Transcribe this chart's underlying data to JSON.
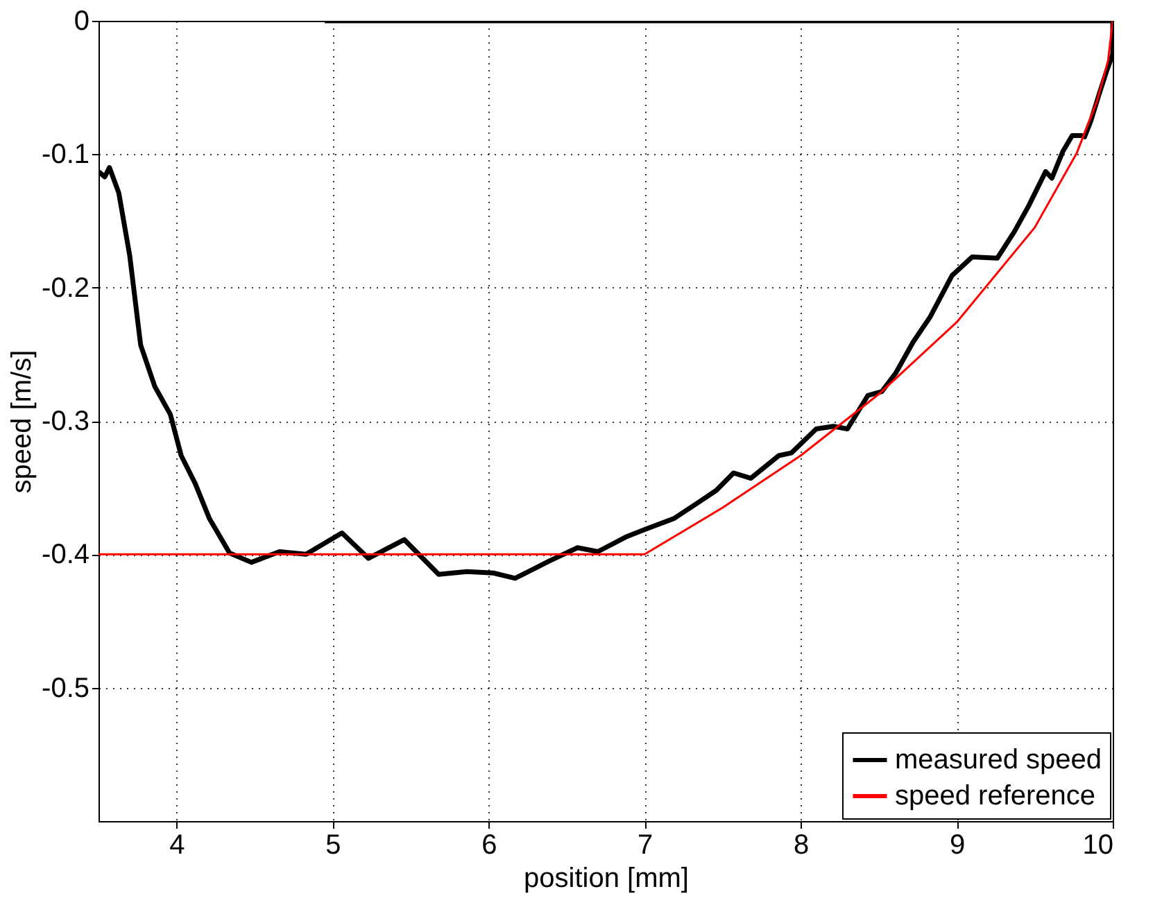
{
  "chart_data": {
    "type": "line",
    "xlabel": "position [mm]",
    "ylabel": "speed [m/s]",
    "xlim": [
      3.5,
      10
    ],
    "xticks": [
      4,
      5,
      6,
      7,
      8,
      9,
      10
    ],
    "ylim": [
      -0.6,
      0
    ],
    "yticks": [
      -0.5,
      -0.4,
      -0.3,
      -0.2,
      -0.1,
      0
    ],
    "grid": true,
    "legend": "bottom right",
    "series": [
      {
        "name": "measured speed",
        "color": "#000000",
        "x": [
          3.5,
          3.54,
          3.57,
          3.63,
          3.7,
          3.77,
          3.86,
          3.96,
          4.03,
          4.12,
          4.21,
          4.34,
          4.48,
          4.66,
          4.83,
          5.06,
          5.23,
          5.46,
          5.68,
          5.86,
          6.03,
          6.17,
          6.39,
          6.57,
          6.7,
          6.88,
          7.01,
          7.19,
          7.32,
          7.46,
          7.57,
          7.68,
          7.86,
          7.94,
          8.1,
          8.21,
          8.3,
          8.43,
          8.52,
          8.61,
          8.72,
          8.83,
          8.97,
          9.1,
          9.26,
          9.37,
          9.46,
          9.57,
          9.61,
          9.68,
          9.74,
          9.8,
          9.82,
          9.86,
          9.91,
          9.96,
          10,
          10,
          4.95
        ],
        "values": [
          -0.113,
          -0.117,
          -0.11,
          -0.129,
          -0.176,
          -0.243,
          -0.274,
          -0.295,
          -0.326,
          -0.347,
          -0.373,
          -0.399,
          -0.406,
          -0.398,
          -0.4,
          -0.384,
          -0.403,
          -0.389,
          -0.415,
          -0.413,
          -0.414,
          -0.418,
          -0.405,
          -0.395,
          -0.398,
          -0.387,
          -0.381,
          -0.373,
          -0.363,
          -0.352,
          -0.339,
          -0.343,
          -0.326,
          -0.324,
          -0.306,
          -0.304,
          -0.306,
          -0.281,
          -0.278,
          -0.264,
          -0.241,
          -0.222,
          -0.191,
          -0.177,
          -0.178,
          -0.158,
          -0.139,
          -0.113,
          -0.118,
          -0.098,
          -0.086,
          -0.086,
          -0.087,
          -0.075,
          -0.056,
          -0.038,
          -0.025,
          0,
          0
        ]
      },
      {
        "name": "speed reference",
        "color": "#ff0000",
        "x": [
          3.5,
          7.0,
          7.5,
          8.0,
          8.5,
          9.0,
          9.5,
          9.77,
          9.9,
          9.97,
          10
        ],
        "values": [
          -0.4,
          -0.4,
          -0.365,
          -0.326,
          -0.28,
          -0.226,
          -0.155,
          -0.099,
          -0.06,
          -0.03,
          0
        ]
      }
    ]
  }
}
